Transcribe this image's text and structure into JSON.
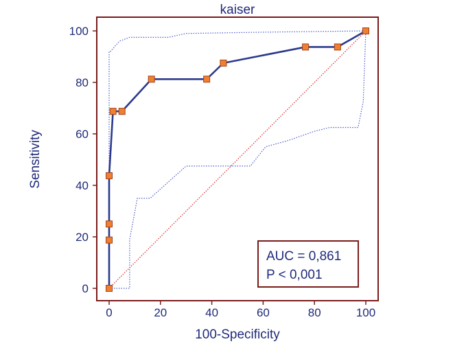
{
  "chart_data": {
    "type": "line",
    "title": "kaiser",
    "xlabel": "100-Specificity",
    "ylabel": "Sensitivity",
    "xlim": [
      0,
      100
    ],
    "ylim": [
      0,
      100
    ],
    "xticks": [
      0,
      20,
      40,
      60,
      80,
      100
    ],
    "yticks": [
      0,
      20,
      40,
      60,
      80,
      100
    ],
    "xtick_labels": [
      "0",
      "20",
      "40",
      "60",
      "80",
      "100"
    ],
    "ytick_labels": [
      "0",
      "20",
      "40",
      "60",
      "80",
      "100"
    ],
    "grid": false,
    "series": [
      {
        "name": "ROC curve",
        "style": "solid-line-square-markers",
        "x": [
          0,
          0,
          0,
          0,
          1.5,
          5,
          16.5,
          38,
          44.5,
          76.5,
          89,
          100
        ],
        "y": [
          0,
          18.75,
          25,
          43.75,
          68.75,
          68.75,
          81.25,
          81.25,
          87.5,
          93.75,
          93.75,
          100
        ]
      },
      {
        "name": "Upper 95% CI",
        "style": "dotted",
        "x": [
          0,
          0,
          0,
          0.5,
          4,
          8,
          20,
          23,
          30,
          60,
          100
        ],
        "y": [
          0,
          60,
          92,
          92,
          96,
          97.5,
          97.5,
          97.5,
          99,
          99.5,
          100
        ]
      },
      {
        "name": "Lower 95% CI",
        "style": "dotted",
        "x": [
          0,
          8,
          8,
          11,
          16,
          30,
          55,
          61,
          70,
          80,
          86,
          97,
          99,
          100
        ],
        "y": [
          0,
          0,
          19,
          35,
          35,
          47.5,
          47.5,
          55,
          57.5,
          61,
          62.5,
          62.5,
          72.5,
          100
        ]
      },
      {
        "name": "Reference line",
        "style": "dotted",
        "x": [
          0,
          100
        ],
        "y": [
          0,
          100
        ]
      }
    ],
    "annotation": {
      "position": "bottom-right",
      "lines": [
        "AUC = 0,861",
        "P < 0,001"
      ]
    },
    "colors": {
      "frame": "#7a1a1a",
      "axis_text": "#1f2a7a",
      "roc_line": "#2b3a8c",
      "marker_fill": "#f08030",
      "marker_stroke": "#a0401a",
      "ci_line": "#4a5cc8",
      "reference_line": "#d22828",
      "legend_border": "#7a1a1a"
    }
  }
}
